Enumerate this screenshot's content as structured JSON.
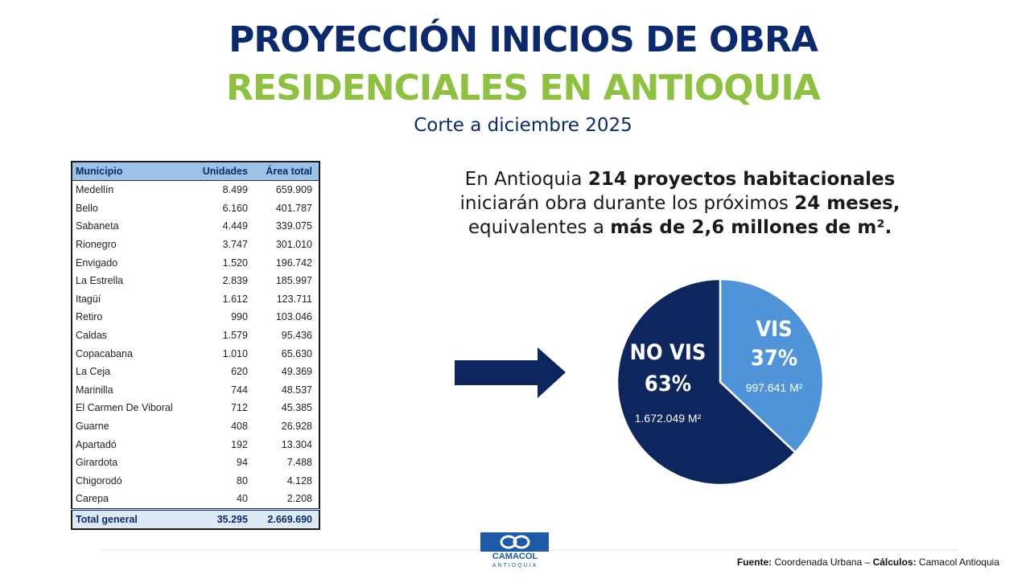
{
  "header": {
    "title": "PROYECCIÓN INICIOS DE OBRA",
    "title2": "RESIDENCIALES EN ANTIOQUIA",
    "subtitle": "Corte a diciembre 2025"
  },
  "table": {
    "columns": [
      "Municipio",
      "Unidades",
      "Área total"
    ],
    "rows": [
      [
        "Medellín",
        "8.499",
        "659.909"
      ],
      [
        "Bello",
        "6.160",
        "401.787"
      ],
      [
        "Sabaneta",
        "4.449",
        "339.075"
      ],
      [
        "Rionegro",
        "3.747",
        "301.010"
      ],
      [
        "Envigado",
        "1.520",
        "196.742"
      ],
      [
        "La Estrella",
        "2.839",
        "185.997"
      ],
      [
        "Itagüí",
        "1.612",
        "123.711"
      ],
      [
        "Retiro",
        "990",
        "103.046"
      ],
      [
        "Caldas",
        "1.579",
        "95.436"
      ],
      [
        "Copacabana",
        "1.010",
        "65.630"
      ],
      [
        "La Ceja",
        "620",
        "49.369"
      ],
      [
        "Marinilla",
        "744",
        "48.537"
      ],
      [
        "El Carmen De Viboral",
        "712",
        "45.385"
      ],
      [
        "Guarne",
        "408",
        "26.928"
      ],
      [
        "Apartadó",
        "192",
        "13.304"
      ],
      [
        "Girardota",
        "94",
        "7.488"
      ],
      [
        "Chigorodó",
        "80",
        "4.128"
      ],
      [
        "Carepa",
        "40",
        "2.208"
      ]
    ],
    "total": [
      "Total general",
      "35.295",
      "2.669.690"
    ]
  },
  "statement": {
    "lines": [
      [
        {
          "text": "En Antioquia ",
          "bold": false
        },
        {
          "text": "214 proyectos habitacionales",
          "bold": true
        }
      ],
      [
        {
          "text": "iniciarán obra durante los próximos ",
          "bold": false
        },
        {
          "text": "24 meses,",
          "bold": true
        }
      ],
      [
        {
          "text": "equivalentes a ",
          "bold": false
        },
        {
          "text": "más de 2,6 millones de m².",
          "bold": true
        }
      ]
    ]
  },
  "chart_data": {
    "type": "pie",
    "categories": [
      "VIS",
      "NO VIS"
    ],
    "values": [
      37,
      63
    ],
    "value_labels": [
      "37%",
      "63%"
    ],
    "colors": [
      "#4f93d8",
      "#0d275e"
    ],
    "annotations": [
      "997.641 M²",
      "1.672.049 M²"
    ]
  },
  "footer": {
    "logo_name": "CAMACOL",
    "logo_sub": "ANTIOQUIA",
    "source": [
      {
        "text": "Fuente:",
        "bold": true
      },
      {
        "text": " Coordenada Urbana – ",
        "bold": false
      },
      {
        "text": "Cálculos:",
        "bold": true
      },
      {
        "text": " Camacol Antioquia",
        "bold": false
      }
    ]
  }
}
